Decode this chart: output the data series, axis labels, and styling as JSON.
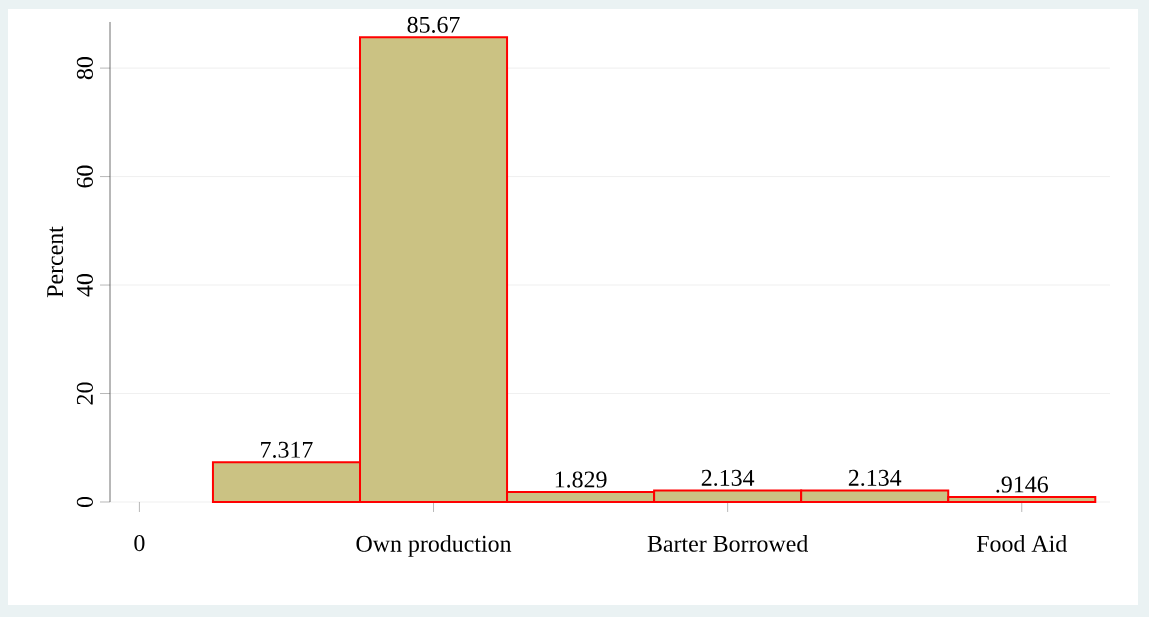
{
  "chart_data": {
    "type": "bar",
    "ylabel": "Percent",
    "categories": [
      "0",
      null,
      "Own production",
      null,
      "Barter Borrowed",
      null,
      "Food Aid"
    ],
    "values": [
      null,
      7.317,
      85.67,
      1.829,
      2.134,
      2.134,
      0.9146
    ],
    "value_labels": [
      null,
      "7.317",
      "85.67",
      "1.829",
      "2.134",
      "2.134",
      ".9146"
    ],
    "color": "#cbc283",
    "ylim": [
      0,
      88.5
    ],
    "yticks": [
      0,
      20,
      40,
      60,
      80
    ],
    "grid": "y"
  }
}
